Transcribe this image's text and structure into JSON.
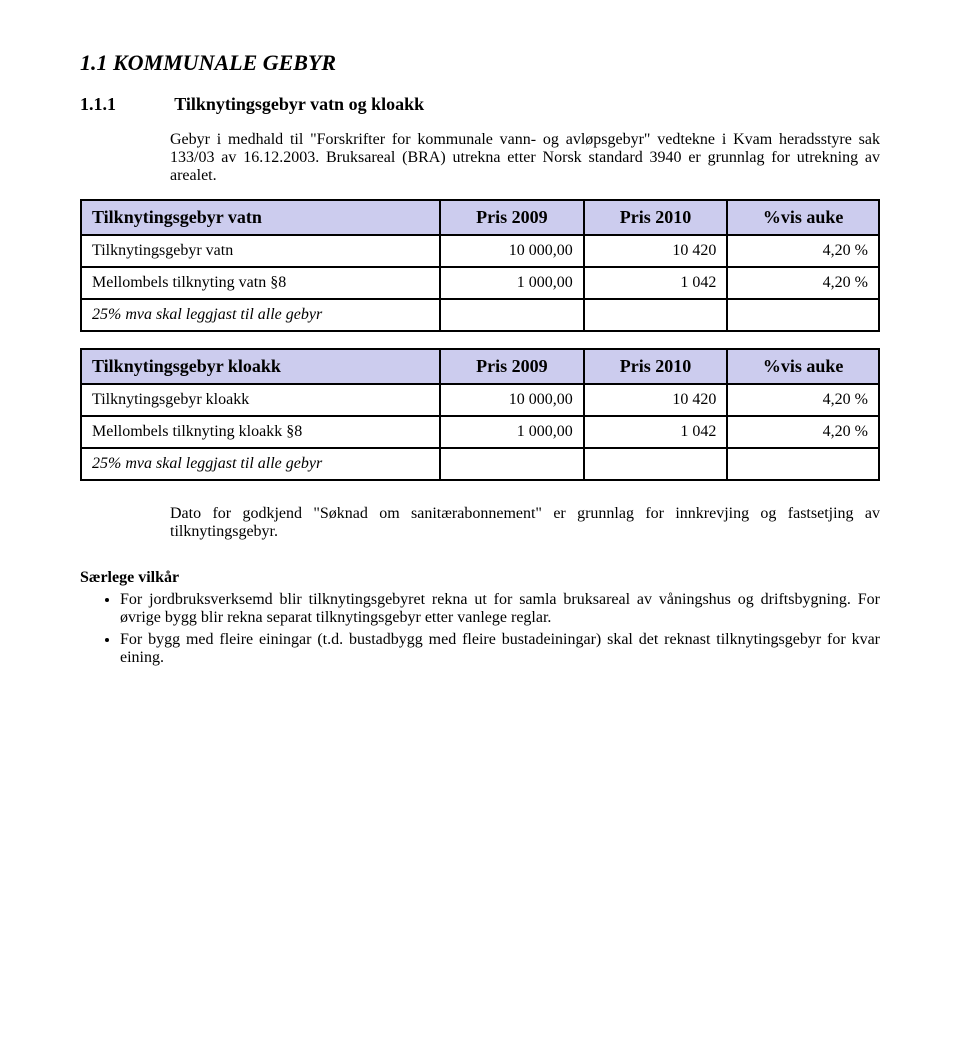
{
  "heading1": "1.1 KOMMUNALE GEBYR",
  "heading2_num": "1.1.1",
  "heading2_text": "Tilknytingsgebyr vatn og kloakk",
  "intro_p1": "Gebyr i medhald til \"Forskrifter for kommunale vann- og avløpsgebyr\" vedtekne i Kvam heradsstyre sak 133/03 av 16.12.2003. Bruksareal (BRA) utrekna etter Norsk standard 3940 er grunnlag for utrekning av arealet.",
  "table1": {
    "title": "Tilknytingsgebyr vatn",
    "col_p2009": "Pris 2009",
    "col_p2010": "Pris 2010",
    "col_pct": "%vis auke",
    "rows": [
      {
        "label": "Tilknytingsgebyr vatn",
        "p1": "10 000,00",
        "p2": "10 420",
        "pc": "4,20 %"
      },
      {
        "label": "Mellombels tilknyting vatn §8",
        "p1": "1 000,00",
        "p2": "1 042",
        "pc": "4,20 %"
      },
      {
        "label": "25% mva skal leggjast til alle gebyr",
        "p1": "",
        "p2": "",
        "pc": "",
        "italic": true
      }
    ]
  },
  "table2": {
    "title": "Tilknytingsgebyr kloakk",
    "col_p2009": "Pris 2009",
    "col_p2010": "Pris 2010",
    "col_pct": "%vis auke",
    "rows": [
      {
        "label": "Tilknytingsgebyr kloakk",
        "p1": "10 000,00",
        "p2": "10 420",
        "pc": "4,20 %"
      },
      {
        "label": "Mellombels tilknyting kloakk §8",
        "p1": "1 000,00",
        "p2": "1 042",
        "pc": "4,20 %"
      },
      {
        "label": "25% mva skal leggjast til alle gebyr",
        "p1": "",
        "p2": "",
        "pc": "",
        "italic": true
      }
    ]
  },
  "para2": "Dato for godkjend \"Søknad om sanitærabonnement\" er grunnlag for innkrevjing og fastsetjing av tilknytingsgebyr.",
  "sec_label": "Særlege vilkår",
  "bullets": [
    "For jordbruksverksemd blir tilknytingsgebyret rekna ut for samla bruksareal av våningshus og driftsbygning. For øvrige bygg blir rekna separat tilknytingsgebyr etter vanlege reglar.",
    "For bygg med fleire einingar (t.d. bustadbygg med fleire bustadeiningar) skal det reknast tilknytingsgebyr for kvar eining."
  ],
  "style": {
    "header_bg": "#ccccee",
    "border_color": "#000000",
    "page_bg": "#ffffff",
    "text_color": "#000000",
    "heading1_fontsize": 22,
    "heading2_fontsize": 18,
    "body_fontsize": 16
  }
}
